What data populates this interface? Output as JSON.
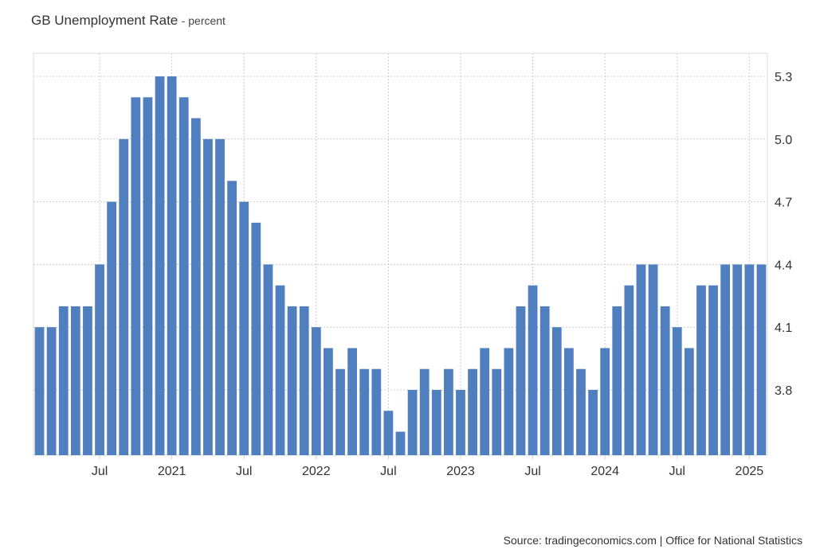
{
  "header": {
    "title": "GB Unemployment Rate",
    "unit": "- percent"
  },
  "source": "Source: tradingeconomics.com | Office for National Statistics",
  "colors": {
    "bar": "#4f7fbf",
    "grid": "#cccccc"
  },
  "chart_data": {
    "type": "bar",
    "title": "GB Unemployment Rate",
    "unit": "percent",
    "x_ticks": [
      "Jul",
      "2021",
      "Jul",
      "2022",
      "Jul",
      "2023",
      "Jul",
      "2024",
      "Jul",
      "2025"
    ],
    "y_ticks": [
      "3.8",
      "4.1",
      "4.4",
      "4.7",
      "5.0",
      "5.3"
    ],
    "ylim": [
      3.5,
      5.4
    ],
    "grid": true,
    "y_axis_side": "right",
    "series": [
      {
        "values": [
          4.1,
          4.1,
          4.2,
          4.2,
          4.2,
          4.4,
          4.7,
          5.0,
          5.2,
          5.2,
          5.3,
          5.3,
          5.2,
          5.1,
          5.0,
          5.0,
          4.8,
          4.7,
          4.6,
          4.4,
          4.3,
          4.2,
          4.2,
          4.1,
          4.0,
          3.9,
          4.0,
          3.9,
          3.9,
          3.7,
          3.6,
          3.8,
          3.9,
          3.8,
          3.9,
          3.8,
          3.9,
          4.0,
          3.9,
          4.0,
          4.2,
          4.3,
          4.2,
          4.1,
          4.0,
          3.9,
          3.8,
          4.0,
          4.2,
          4.3,
          4.4,
          4.4,
          4.2,
          4.1,
          4.0,
          4.3,
          4.3,
          4.4,
          4.4,
          4.4,
          4.4
        ]
      }
    ]
  }
}
